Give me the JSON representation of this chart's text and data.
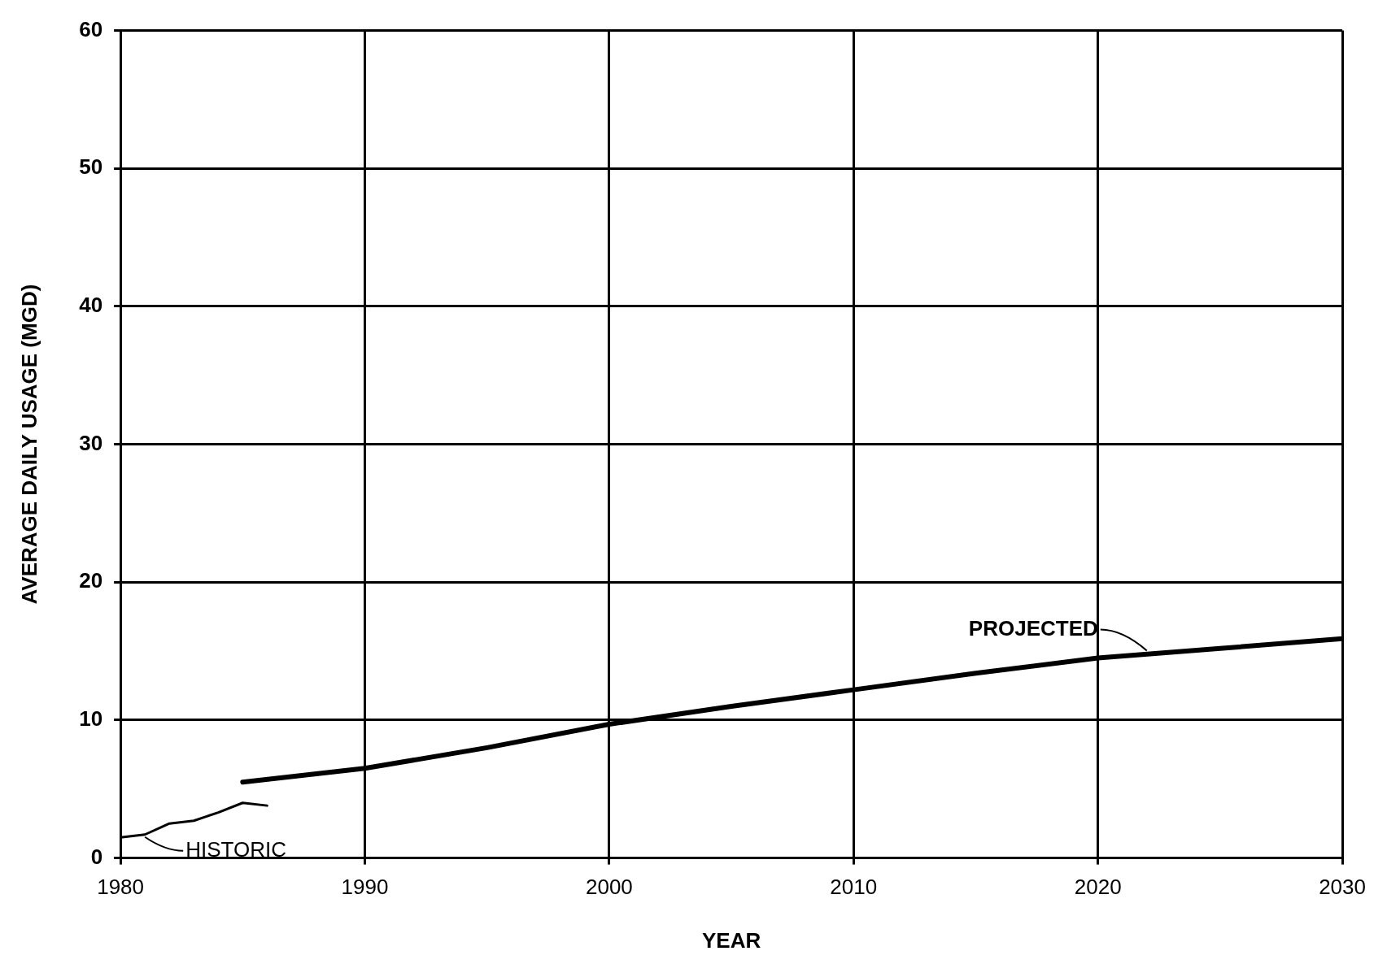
{
  "chart_data": {
    "type": "line",
    "xlabel": "YEAR",
    "ylabel": "AVERAGE DAILY USAGE (MGD)",
    "xlim": [
      1980,
      2030
    ],
    "xticks": [
      1980,
      1990,
      2000,
      2010,
      2020,
      2030
    ],
    "ylim": [
      0,
      60
    ],
    "yticks": [
      0,
      10,
      20,
      30,
      40,
      50,
      60
    ],
    "grid": true,
    "legend": false,
    "marker": "none",
    "line_style": "solid",
    "series": [
      {
        "color": "#000000",
        "x": [
          1980,
          1981,
          1982,
          1983,
          1984,
          1985,
          1986
        ],
        "values": [
          1.5,
          1.7,
          2.5,
          2.7,
          3.3,
          4.0,
          3.8
        ]
      },
      {
        "color": "#000000",
        "x": [
          1985,
          1990,
          1995,
          2000,
          2005,
          2010,
          2015,
          2020,
          2025,
          2030
        ],
        "values": [
          5.5,
          6.5,
          8.0,
          9.7,
          11.0,
          12.2,
          13.4,
          14.5,
          15.2,
          15.9
        ]
      }
    ],
    "annotations": [
      {
        "text": "HISTORIC",
        "x": 1981,
        "y": 1.7
      },
      {
        "text": "PROJECTED",
        "x": 2022,
        "y": 14.8
      }
    ]
  }
}
